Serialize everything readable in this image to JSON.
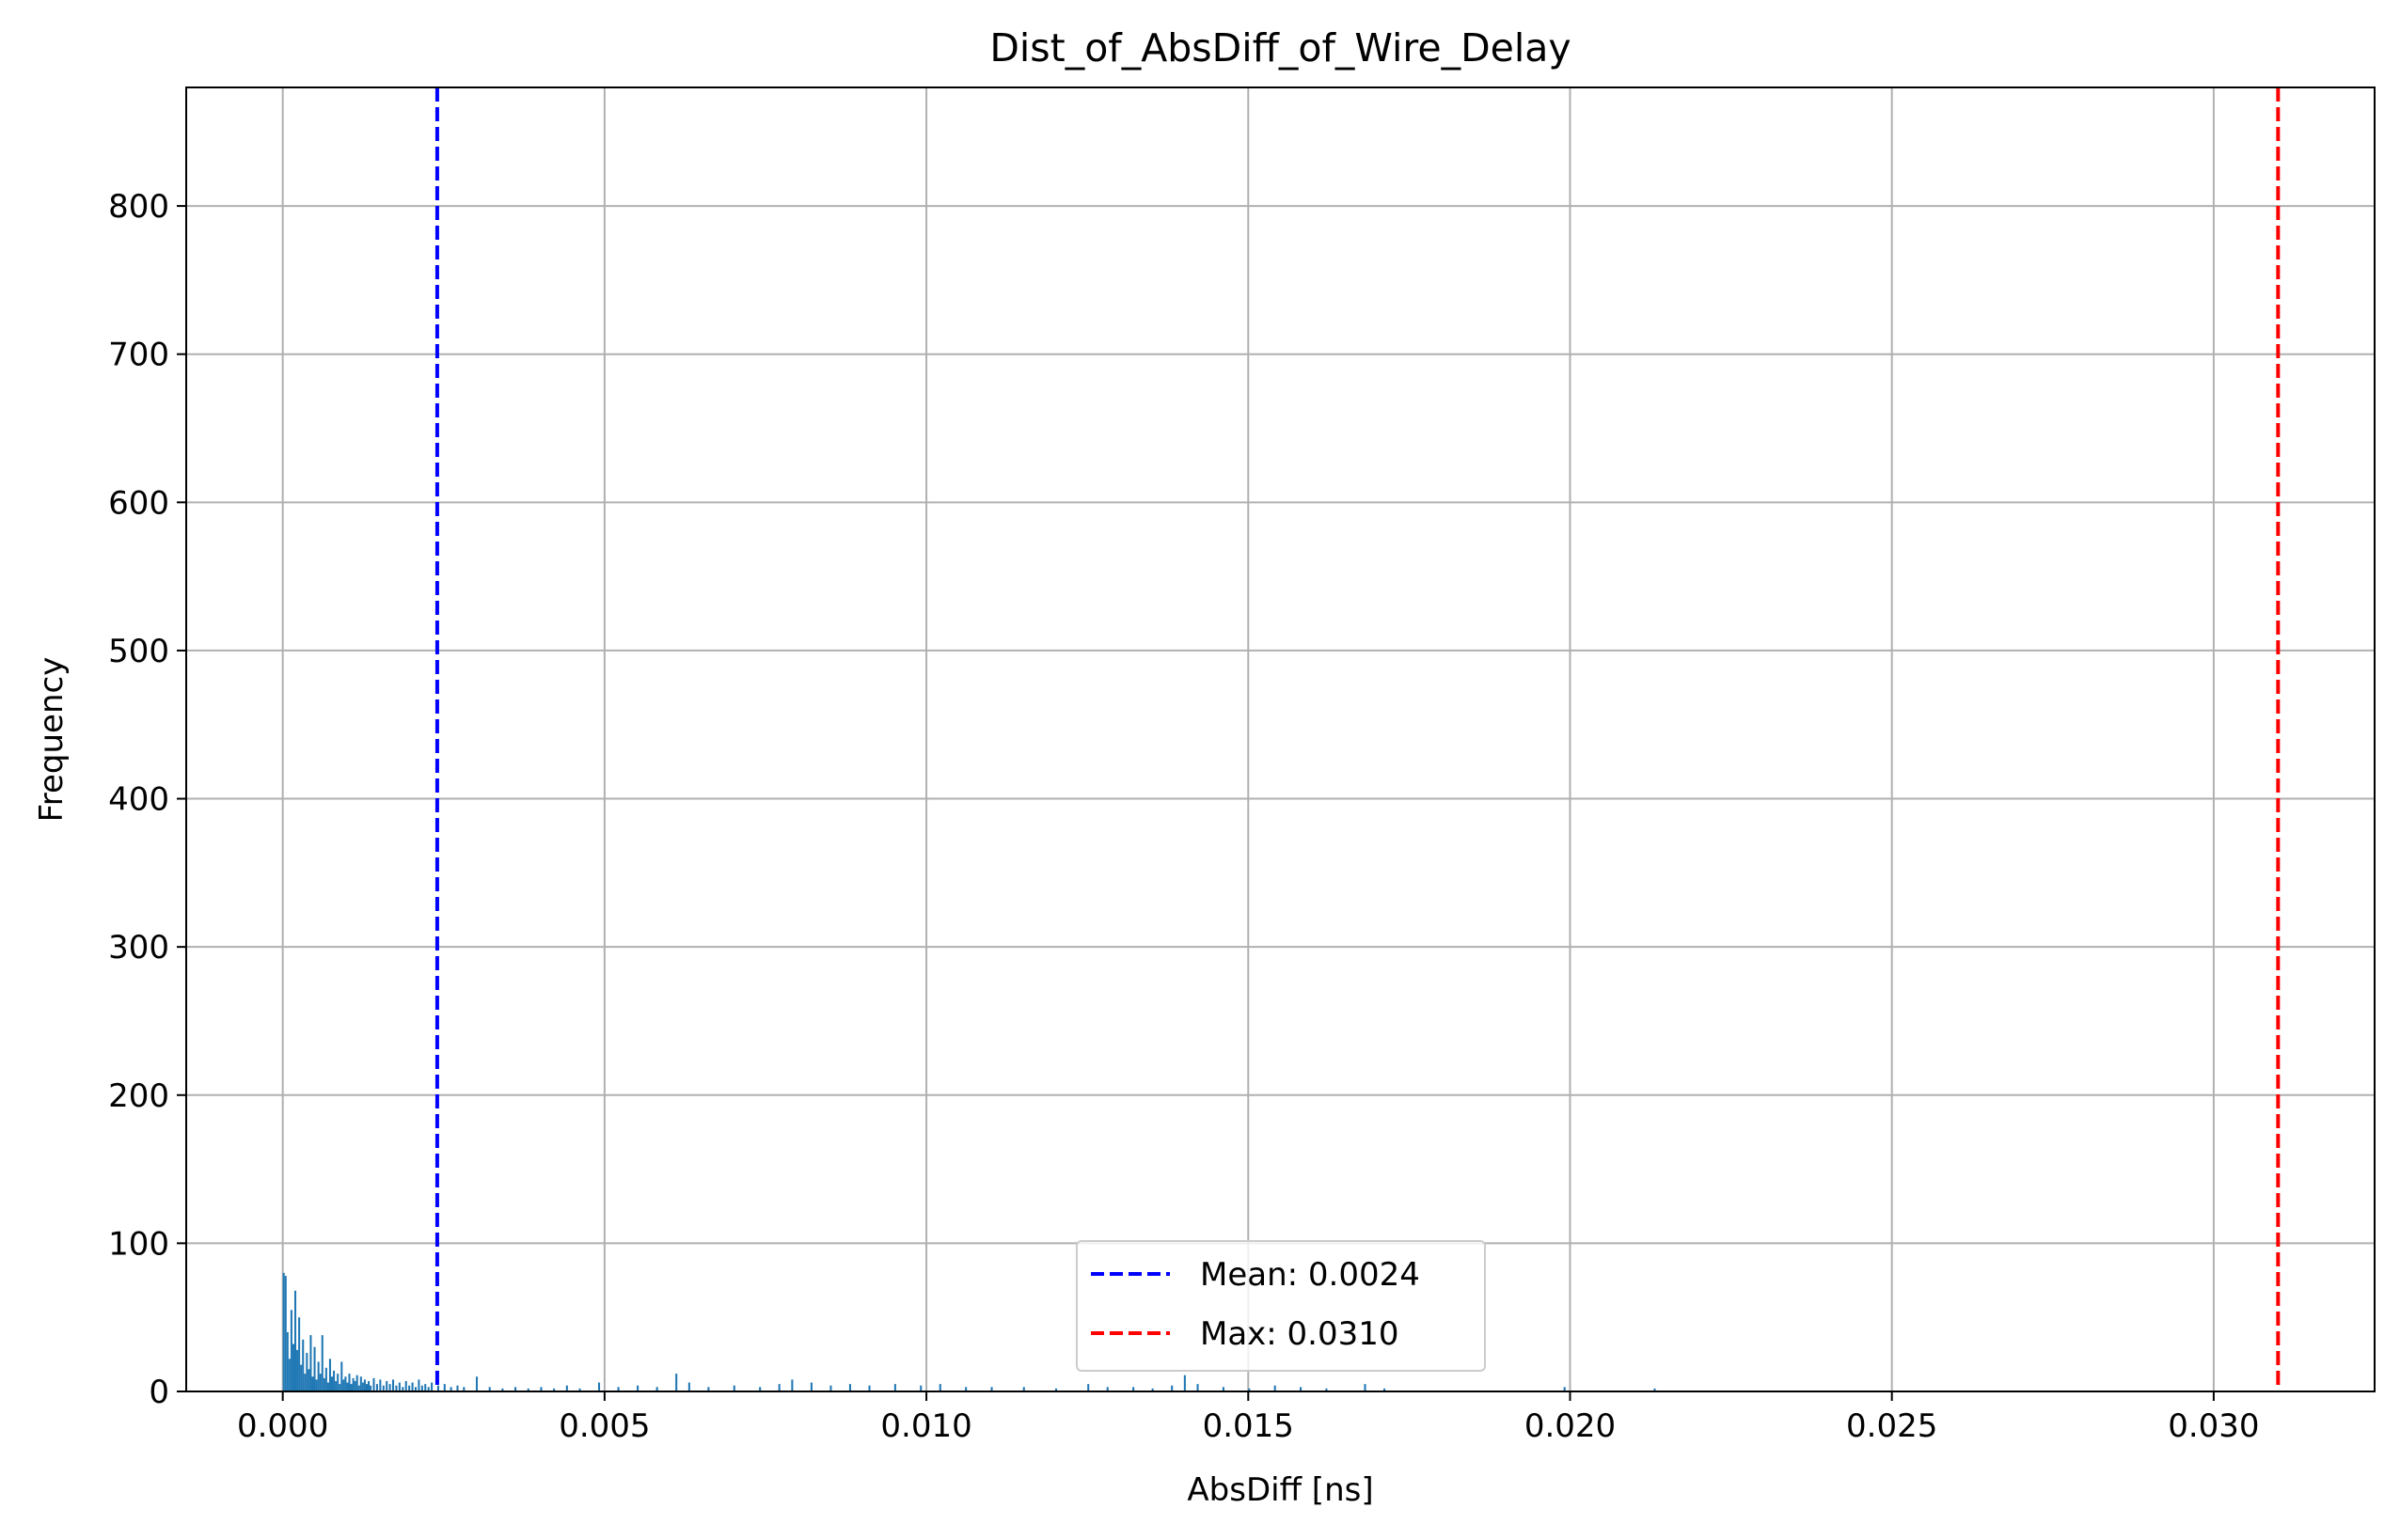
{
  "chart_data": {
    "type": "bar",
    "title": "Dist_of_AbsDiff_of_Wire_Delay",
    "xlabel": "AbsDiff [ns]",
    "ylabel": "Frequency",
    "xlim": [
      -0.0015,
      0.0325
    ],
    "ylim": [
      0,
      880
    ],
    "xticks": [
      0.0,
      0.005,
      0.01,
      0.015,
      0.02,
      0.025,
      0.03
    ],
    "xtick_labels": [
      "0.000",
      "0.005",
      "0.010",
      "0.015",
      "0.020",
      "0.025",
      "0.030"
    ],
    "yticks": [
      0,
      100,
      200,
      300,
      400,
      500,
      600,
      700,
      800
    ],
    "ytick_labels": [
      "0",
      "100",
      "200",
      "300",
      "400",
      "500",
      "600",
      "700",
      "800"
    ],
    "grid": true,
    "bar_color": "#1f77b4",
    "histogram": {
      "bin_width": 3e-05,
      "bins": [
        [
          0.0,
          80
        ],
        [
          3e-05,
          78
        ],
        [
          6e-05,
          40
        ],
        [
          9e-05,
          22
        ],
        [
          0.00012,
          55
        ],
        [
          0.00015,
          32
        ],
        [
          0.00018,
          68
        ],
        [
          0.00021,
          28
        ],
        [
          0.00024,
          50
        ],
        [
          0.00027,
          18
        ],
        [
          0.0003,
          35
        ],
        [
          0.00033,
          12
        ],
        [
          0.00036,
          26
        ],
        [
          0.00039,
          15
        ],
        [
          0.00042,
          38
        ],
        [
          0.00045,
          10
        ],
        [
          0.00048,
          30
        ],
        [
          0.00051,
          8
        ],
        [
          0.00054,
          20
        ],
        [
          0.00057,
          12
        ],
        [
          0.0006,
          38
        ],
        [
          0.00063,
          9
        ],
        [
          0.00066,
          16
        ],
        [
          0.00069,
          6
        ],
        [
          0.00072,
          22
        ],
        [
          0.00075,
          10
        ],
        [
          0.00078,
          14
        ],
        [
          0.00081,
          7
        ],
        [
          0.00084,
          12
        ],
        [
          0.00087,
          5
        ],
        [
          0.0009,
          20
        ],
        [
          0.00093,
          8
        ],
        [
          0.00096,
          10
        ],
        [
          0.00099,
          6
        ],
        [
          0.00102,
          12
        ],
        [
          0.00105,
          5
        ],
        [
          0.00108,
          9
        ],
        [
          0.00111,
          7
        ],
        [
          0.00114,
          11
        ],
        [
          0.00117,
          4
        ],
        [
          0.0012,
          10
        ],
        [
          0.00123,
          6
        ],
        [
          0.00126,
          8
        ],
        [
          0.00129,
          5
        ],
        [
          0.00132,
          7
        ],
        [
          0.00135,
          4
        ],
        [
          0.0014,
          9
        ],
        [
          0.00145,
          5
        ],
        [
          0.0015,
          8
        ],
        [
          0.00155,
          4
        ],
        [
          0.0016,
          7
        ],
        [
          0.00165,
          5
        ],
        [
          0.0017,
          8
        ],
        [
          0.00175,
          4
        ],
        [
          0.0018,
          6
        ],
        [
          0.00185,
          3
        ],
        [
          0.0019,
          7
        ],
        [
          0.00195,
          4
        ],
        [
          0.002,
          6
        ],
        [
          0.00205,
          3
        ],
        [
          0.0021,
          8
        ],
        [
          0.00215,
          4
        ],
        [
          0.0022,
          5
        ],
        [
          0.00225,
          3
        ],
        [
          0.0023,
          6
        ],
        [
          0.0024,
          4
        ],
        [
          0.0025,
          5
        ],
        [
          0.0026,
          3
        ],
        [
          0.0027,
          4
        ],
        [
          0.0028,
          3
        ],
        [
          0.003,
          10
        ],
        [
          0.0032,
          3
        ],
        [
          0.0034,
          2
        ],
        [
          0.0036,
          3
        ],
        [
          0.0038,
          2
        ],
        [
          0.004,
          3
        ],
        [
          0.0042,
          2
        ],
        [
          0.0044,
          4
        ],
        [
          0.0046,
          2
        ],
        [
          0.0049,
          6
        ],
        [
          0.0052,
          3
        ],
        [
          0.0055,
          4
        ],
        [
          0.0058,
          3
        ],
        [
          0.0061,
          12
        ],
        [
          0.0063,
          6
        ],
        [
          0.0066,
          3
        ],
        [
          0.007,
          4
        ],
        [
          0.0074,
          3
        ],
        [
          0.0077,
          5
        ],
        [
          0.0079,
          8
        ],
        [
          0.0082,
          6
        ],
        [
          0.0085,
          4
        ],
        [
          0.0088,
          5
        ],
        [
          0.0091,
          4
        ],
        [
          0.0095,
          5
        ],
        [
          0.0099,
          4
        ],
        [
          0.0102,
          5
        ],
        [
          0.0106,
          3
        ],
        [
          0.011,
          3
        ],
        [
          0.0115,
          3
        ],
        [
          0.012,
          2
        ],
        [
          0.0125,
          5
        ],
        [
          0.0128,
          3
        ],
        [
          0.0132,
          3
        ],
        [
          0.0135,
          2
        ],
        [
          0.0138,
          4
        ],
        [
          0.014,
          11
        ],
        [
          0.0142,
          5
        ],
        [
          0.0146,
          3
        ],
        [
          0.015,
          2
        ],
        [
          0.0154,
          4
        ],
        [
          0.0158,
          3
        ],
        [
          0.0162,
          2
        ],
        [
          0.0168,
          5
        ],
        [
          0.0171,
          2
        ],
        [
          0.0199,
          3
        ],
        [
          0.0213,
          2
        ]
      ]
    },
    "vlines": [
      {
        "x": 0.0024,
        "color": "#0000ff",
        "style": "dashed",
        "label": "Mean: 0.0024"
      },
      {
        "x": 0.031,
        "color": "#ff0000",
        "style": "dashed",
        "label": "Max: 0.0310"
      }
    ],
    "legend": {
      "placement": "lower-center",
      "entries": [
        {
          "label": "Mean: 0.0024",
          "color": "#0000ff"
        },
        {
          "label": "Max: 0.0310",
          "color": "#ff0000"
        }
      ]
    }
  }
}
